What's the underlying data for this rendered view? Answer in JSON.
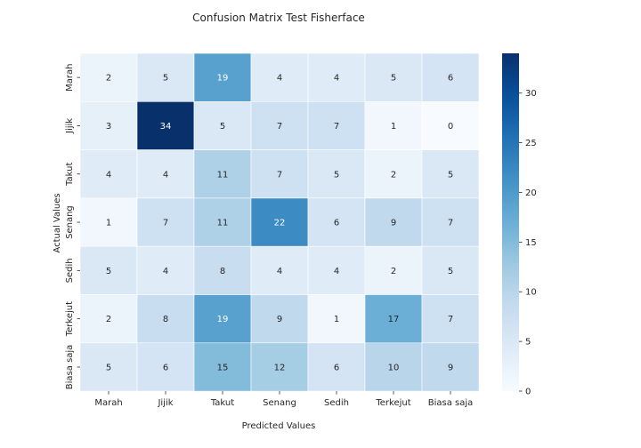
{
  "chart_data": {
    "type": "heatmap",
    "title": "Confusion Matrix Test Fisherface",
    "xlabel": "Predicted Values",
    "ylabel": "Actual Values",
    "x_categories": [
      "Marah",
      "Jijik",
      "Takut",
      "Senang",
      "Sedih",
      "Terkejut",
      "Biasa saja"
    ],
    "y_categories": [
      "Marah",
      "Jijik",
      "Takut",
      "Senang",
      "Sedih",
      "Terkejut",
      "Biasa saja"
    ],
    "matrix": [
      [
        2,
        5,
        19,
        4,
        4,
        5,
        6
      ],
      [
        3,
        34,
        5,
        7,
        7,
        1,
        0
      ],
      [
        4,
        4,
        11,
        7,
        5,
        2,
        5
      ],
      [
        1,
        7,
        11,
        22,
        6,
        9,
        7
      ],
      [
        5,
        4,
        8,
        4,
        4,
        2,
        5
      ],
      [
        2,
        8,
        19,
        9,
        1,
        17,
        7
      ],
      [
        5,
        6,
        15,
        12,
        6,
        10,
        9
      ]
    ],
    "colormap": "Blues",
    "vmin": 0,
    "vmax": 34,
    "colorbar_ticks": [
      0,
      5,
      10,
      15,
      20,
      25,
      30
    ],
    "grid": false
  }
}
